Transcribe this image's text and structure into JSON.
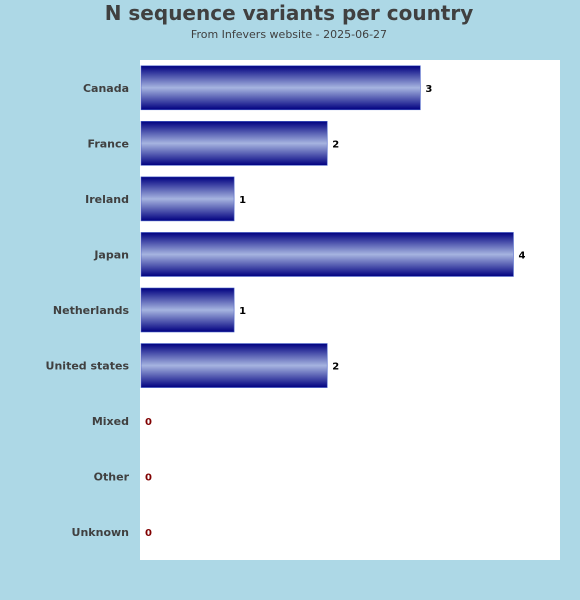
{
  "chart_data": {
    "type": "bar",
    "orientation": "horizontal",
    "title": "N sequence variants per country",
    "subtitle": "From Infevers website - 2025-06-27",
    "categories": [
      "Canada",
      "France",
      "Ireland",
      "Japan",
      "Netherlands",
      "United states",
      "Mixed",
      "Other",
      "Unknown"
    ],
    "values": [
      3,
      2,
      1,
      4,
      1,
      2,
      0,
      0,
      0
    ],
    "xlim": [
      0,
      4.5
    ],
    "grid": false,
    "legend": "none",
    "colors": {
      "background": "#add8e6",
      "plot_background": "#ffffff",
      "bar_dark": "#000080",
      "bar_light": "#a6b4e0",
      "value_label": "#000000",
      "zero_label": "#800000",
      "text": "#404040"
    }
  }
}
